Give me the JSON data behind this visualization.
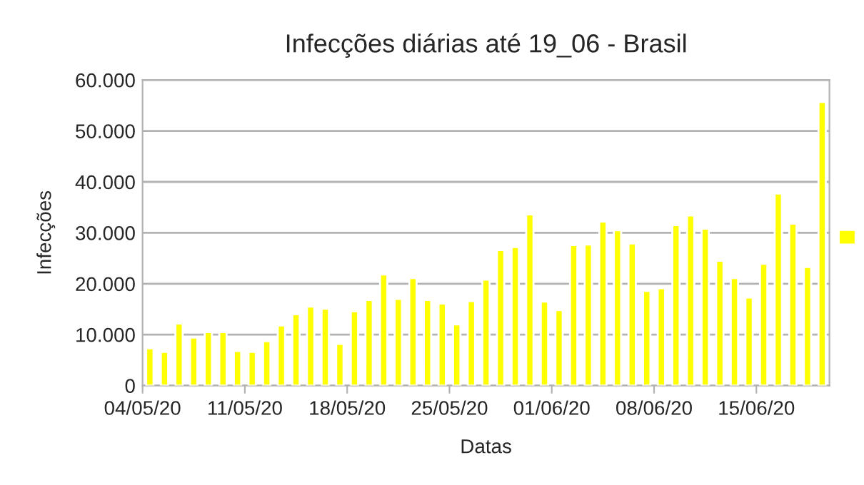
{
  "chart_data": {
    "type": "bar",
    "title": "Infecções diárias até 19_06 - Brasil",
    "xlabel": "Datas",
    "ylabel": "Infecções",
    "categories": [
      "04/05/20",
      null,
      null,
      null,
      null,
      null,
      null,
      "11/05/20",
      null,
      null,
      null,
      null,
      null,
      null,
      "18/05/20",
      null,
      null,
      null,
      null,
      null,
      null,
      "25/05/20",
      null,
      null,
      null,
      null,
      null,
      null,
      "01/06/20",
      null,
      null,
      null,
      null,
      null,
      null,
      "08/06/20",
      null,
      null,
      null,
      null,
      null,
      null,
      "15/06/20",
      null,
      null,
      null,
      null
    ],
    "series": [
      {
        "color": "#ffff00",
        "values": [
          7300,
          6600,
          12200,
          9400,
          10500,
          10500,
          6800,
          6600,
          8700,
          11800,
          14000,
          15500,
          15100,
          8200,
          14600,
          16800,
          21800,
          17000,
          21100,
          16800,
          16100,
          12000,
          16600,
          20800,
          26600,
          27200,
          33600,
          16500,
          14800,
          27600,
          27700,
          32200,
          30500,
          27900,
          18600,
          19100,
          31500,
          33400,
          30800,
          24500,
          21100,
          17300,
          23900,
          37700,
          31800,
          23300,
          55700
        ]
      }
    ],
    "ylim": [
      0,
      60000
    ],
    "yticks": [
      0,
      {
        "value": 10000,
        "label": "10.000"
      },
      {
        "value": 20000,
        "label": "20.000"
      },
      {
        "value": 30000,
        "label": "30.000"
      },
      {
        "value": 40000,
        "label": "40.000"
      },
      {
        "value": 50000,
        "label": "50.000"
      },
      {
        "value": 60000,
        "label": "60.000"
      }
    ],
    "grid": "y"
  }
}
